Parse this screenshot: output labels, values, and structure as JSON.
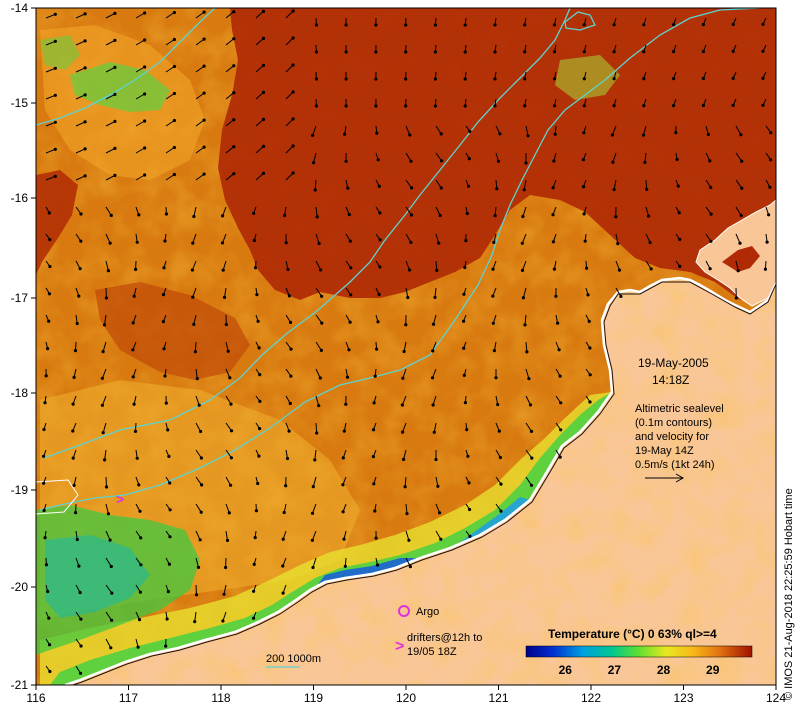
{
  "map": {
    "x_ticks": [
      "116",
      "117",
      "118",
      "119",
      "120",
      "121",
      "122",
      "123",
      "124"
    ],
    "y_ticks": [
      "-14",
      "-15",
      "-16",
      "-17",
      "-18",
      "-19",
      "-20",
      "-21"
    ],
    "lon_range": [
      116,
      124
    ],
    "lat_range": [
      -21,
      -14
    ]
  },
  "annotations": {
    "date": "19-May-2005",
    "time": "14:18Z",
    "altimetry_lines": [
      "Altimetric sealevel",
      "(0.1m contours)",
      "and velocity for",
      "19-May 14Z",
      "0.5m/s (1kt 24h)"
    ],
    "argo_label": "Argo",
    "drifters_line1": "drifters@12h to",
    "drifters_line2": "19/05 18Z",
    "bathy_label": "200  1000m",
    "side_credit": "© IMOS 21-Aug-2018 22:25:59 Hobart time"
  },
  "colorbar": {
    "title": "Temperature (°C) 0 63% ql>=4",
    "ticks": [
      "26",
      "27",
      "28",
      "29"
    ],
    "tick_values": [
      26,
      27,
      28,
      29
    ],
    "range": [
      25.2,
      29.8
    ]
  },
  "colors": {
    "land": "#f9c698",
    "ocean_warm": "#d87a10",
    "ocean_hot": "#b02a05",
    "contour": "#5fd3cf",
    "argo": "#e030e0"
  }
}
